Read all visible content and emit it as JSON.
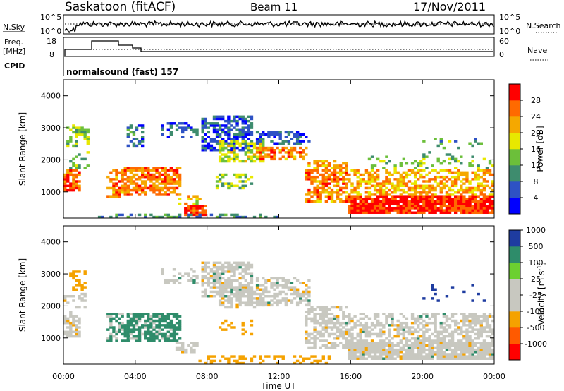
{
  "header": {
    "station": "Saskatoon (fitACF)",
    "beam": "Beam 11",
    "date": "17/Nov/2011"
  },
  "colors": {
    "power_scale": [
      "#0000ff",
      "#2e52c4",
      "#3e8c6e",
      "#6cbf3a",
      "#e8e800",
      "#f5a800",
      "#ff6a00",
      "#ff0000"
    ],
    "velocity_scale": [
      "#ff0000",
      "#ff5a00",
      "#f5a200",
      "#c8c8c0",
      "#c8c8c0",
      "#6cd030",
      "#2e8c6a",
      "#1e3ca0"
    ]
  },
  "top_panels": {
    "nsky_label": "N.Sky",
    "nsearch_label": "N.Search",
    "noise_ticks_left": [
      "10^5",
      "10^0"
    ],
    "noise_ticks_right": [
      "10^5",
      "10^0"
    ],
    "freq_label_1": "Freq.",
    "freq_label_2": "[MHz]",
    "freq_ticks": [
      "18",
      "8"
    ],
    "nave_label": "Nave",
    "nave_ticks": [
      "60",
      "0"
    ],
    "cpid_label": "CPID",
    "cpid_text": "normalsound (fast) 157"
  },
  "chart_data": [
    {
      "type": "heatmap",
      "name": "power",
      "ylabel": "Slant Range [km]",
      "xlabel": "",
      "yticks": [
        "1000",
        "2000",
        "3000",
        "4000"
      ],
      "colorbar_label": "Power [dB]",
      "colorbar_ticks": [
        "4",
        "8",
        "12",
        "16",
        "20",
        "24",
        "28"
      ],
      "ylim": [
        180,
        4500
      ],
      "xlim": [
        0,
        24
      ],
      "scale_min": 0,
      "scale_max": 32,
      "blobs": [
        {
          "t0": 0.0,
          "t1": 0.9,
          "r0": 1000,
          "r1": 1700,
          "v": 27,
          "d": 0.75
        },
        {
          "t0": 0.2,
          "t1": 1.5,
          "r0": 2400,
          "r1": 3100,
          "v": 14,
          "d": 0.45
        },
        {
          "t0": 0.3,
          "t1": 1.4,
          "r0": 1700,
          "r1": 2300,
          "v": 12,
          "d": 0.3
        },
        {
          "t0": 2.4,
          "t1": 3.4,
          "r0": 800,
          "r1": 1700,
          "v": 24,
          "d": 0.6
        },
        {
          "t0": 3.4,
          "t1": 6.6,
          "r0": 900,
          "r1": 1800,
          "v": 25,
          "d": 0.72
        },
        {
          "t0": 3.5,
          "t1": 4.5,
          "r0": 2400,
          "r1": 3100,
          "v": 8,
          "d": 0.35
        },
        {
          "t0": 5.5,
          "t1": 7.5,
          "r0": 2700,
          "r1": 3200,
          "v": 6,
          "d": 0.35
        },
        {
          "t0": 6.2,
          "t1": 7.6,
          "r0": 500,
          "r1": 900,
          "v": 20,
          "d": 0.45
        },
        {
          "t0": 6.8,
          "t1": 8.0,
          "r0": 250,
          "r1": 600,
          "v": 28,
          "d": 0.8
        },
        {
          "t0": 7.7,
          "t1": 10.6,
          "r0": 2300,
          "r1": 3400,
          "v": 6,
          "d": 0.65
        },
        {
          "t0": 8.6,
          "t1": 11.2,
          "r0": 1900,
          "r1": 2600,
          "v": 16,
          "d": 0.55
        },
        {
          "t0": 8.5,
          "t1": 10.5,
          "r0": 1100,
          "r1": 1600,
          "v": 14,
          "d": 0.45
        },
        {
          "t0": 10.8,
          "t1": 13.6,
          "r0": 2000,
          "r1": 2400,
          "v": 24,
          "d": 0.6
        },
        {
          "t0": 10.8,
          "t1": 13.8,
          "r0": 2500,
          "r1": 2900,
          "v": 6,
          "d": 0.55
        },
        {
          "t0": 13.4,
          "t1": 15.8,
          "r0": 700,
          "r1": 2000,
          "v": 24,
          "d": 0.6
        },
        {
          "t0": 15.8,
          "t1": 24.0,
          "r0": 300,
          "r1": 900,
          "v": 29,
          "d": 0.92
        },
        {
          "t0": 15.8,
          "t1": 24.0,
          "r0": 900,
          "r1": 1700,
          "v": 22,
          "d": 0.55
        },
        {
          "t0": 17.0,
          "t1": 24.0,
          "r0": 1700,
          "r1": 2100,
          "v": 14,
          "d": 0.2
        },
        {
          "t0": 20.0,
          "t1": 23.5,
          "r0": 2100,
          "r1": 2700,
          "v": 12,
          "d": 0.12
        },
        {
          "t0": 2.0,
          "t1": 12.0,
          "r0": 180,
          "r1": 350,
          "v": 10,
          "d": 0.35
        }
      ]
    },
    {
      "type": "heatmap",
      "name": "velocity",
      "ylabel": "Slant Range [km]",
      "xlabel": "Time UT",
      "yticks": [
        "1000",
        "2000",
        "3000",
        "4000"
      ],
      "xticks": [
        "00:00",
        "04:00",
        "08:00",
        "12:00",
        "16:00",
        "20:00",
        "00:00"
      ],
      "colorbar_label": "Velocity [m s^-1]",
      "colorbar_ticks": [
        "-1000",
        "-500",
        "-100",
        "-25",
        "25",
        "100",
        "500",
        "1000"
      ],
      "ylim": [
        180,
        4500
      ],
      "xlim": [
        0,
        24
      ],
      "blobs": [
        {
          "t0": 0.0,
          "t1": 0.9,
          "r0": 1000,
          "r1": 1700,
          "c": "grey",
          "d": 0.7
        },
        {
          "t0": 0.3,
          "t1": 1.3,
          "r0": 2500,
          "r1": 3100,
          "c": "orange",
          "d": 0.45
        },
        {
          "t0": 0.0,
          "t1": 1.2,
          "r0": 1700,
          "r1": 2400,
          "c": "grey",
          "d": 0.3
        },
        {
          "t0": 2.4,
          "t1": 3.4,
          "r0": 900,
          "r1": 1800,
          "c": "green",
          "d": 0.6
        },
        {
          "t0": 3.4,
          "t1": 6.6,
          "r0": 900,
          "r1": 1800,
          "c": "green",
          "d": 0.7
        },
        {
          "t0": 5.5,
          "t1": 7.5,
          "r0": 2700,
          "r1": 3200,
          "c": "grey",
          "d": 0.3
        },
        {
          "t0": 6.2,
          "t1": 7.5,
          "r0": 500,
          "r1": 900,
          "c": "grey",
          "d": 0.45
        },
        {
          "t0": 7.7,
          "t1": 10.6,
          "r0": 2300,
          "r1": 3400,
          "c": "grey",
          "d": 0.65
        },
        {
          "t0": 8.6,
          "t1": 11.2,
          "r0": 1900,
          "r1": 2600,
          "c": "grey",
          "d": 0.55
        },
        {
          "t0": 8.5,
          "t1": 10.5,
          "r0": 1100,
          "r1": 1600,
          "c": "orange",
          "d": 0.35
        },
        {
          "t0": 10.8,
          "t1": 13.8,
          "r0": 2000,
          "r1": 2900,
          "c": "grey",
          "d": 0.55
        },
        {
          "t0": 13.4,
          "t1": 15.8,
          "r0": 700,
          "r1": 2000,
          "c": "grey",
          "d": 0.6
        },
        {
          "t0": 15.8,
          "t1": 24.0,
          "r0": 300,
          "r1": 900,
          "c": "grey",
          "d": 0.9
        },
        {
          "t0": 15.8,
          "t1": 24.0,
          "r0": 900,
          "r1": 1800,
          "c": "grey",
          "d": 0.55
        },
        {
          "t0": 7.5,
          "t1": 15.0,
          "r0": 180,
          "r1": 450,
          "c": "orange",
          "d": 0.35
        },
        {
          "t0": 20.0,
          "t1": 23.5,
          "r0": 2100,
          "r1": 2700,
          "c": "blue",
          "d": 0.1
        }
      ]
    }
  ]
}
